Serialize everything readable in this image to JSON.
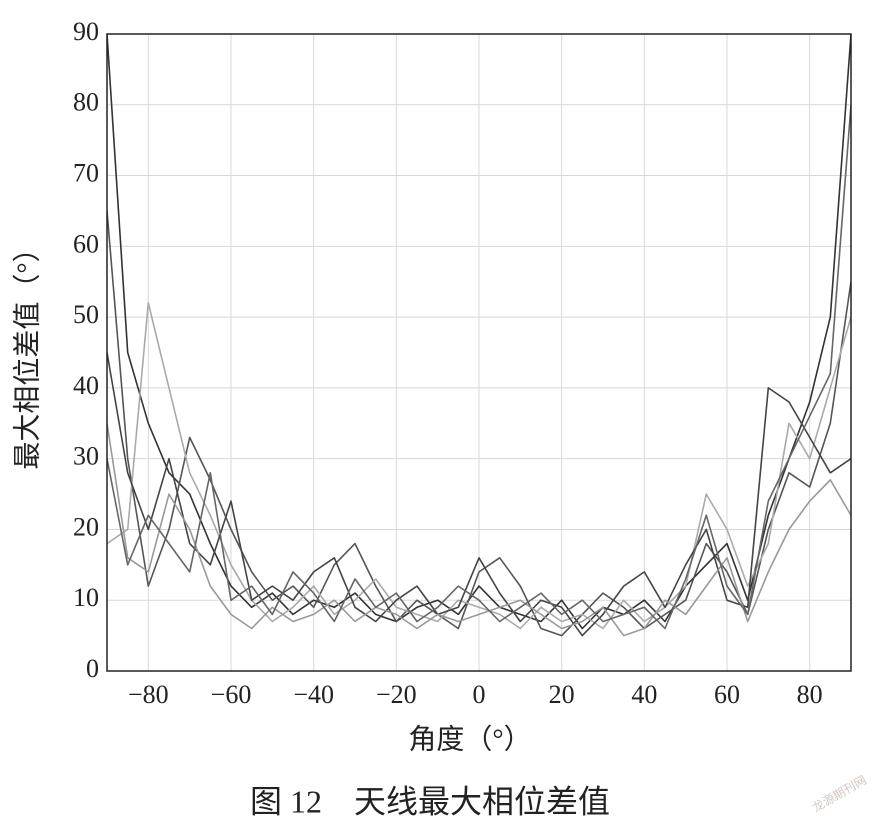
{
  "chart_data": {
    "type": "line",
    "xlabel": "角度（°）",
    "ylabel": "最大相位差值（°）",
    "caption": "图 12　天线最大相位差值",
    "watermark": "龙源期刊网",
    "grid": true,
    "xlim": [
      -90,
      90
    ],
    "ylim": [
      0,
      90
    ],
    "xticks": [
      {
        "value": -80,
        "label": "−80"
      },
      {
        "value": -60,
        "label": "−60"
      },
      {
        "value": -40,
        "label": "−40"
      },
      {
        "value": -20,
        "label": "−20"
      },
      0,
      20,
      40,
      60,
      80
    ],
    "yticks": [
      0,
      10,
      20,
      30,
      40,
      50,
      60,
      70,
      80,
      90
    ],
    "x": [
      -90,
      -85,
      -80,
      -75,
      -70,
      -65,
      -60,
      -55,
      -50,
      -45,
      -40,
      -35,
      -30,
      -25,
      -20,
      -15,
      -10,
      -5,
      0,
      5,
      10,
      15,
      20,
      25,
      30,
      35,
      40,
      45,
      50,
      55,
      60,
      65,
      70,
      75,
      80,
      85,
      90
    ],
    "series": [
      {
        "color": "#333333",
        "values": [
          90,
          45,
          35,
          28,
          25,
          18,
          12,
          9,
          11,
          8,
          10,
          9,
          11,
          8,
          7,
          9,
          10,
          8,
          12,
          9,
          8,
          7,
          10,
          6,
          9,
          8,
          10,
          7,
          12,
          15,
          18,
          10,
          22,
          30,
          38,
          50,
          90
        ]
      },
      {
        "color": "#555555",
        "values": [
          65,
          30,
          12,
          20,
          33,
          27,
          20,
          14,
          10,
          12,
          9,
          15,
          18,
          12,
          7,
          10,
          8,
          6,
          14,
          16,
          12,
          6,
          5,
          8,
          11,
          9,
          6,
          8,
          10,
          18,
          14,
          8,
          20,
          28,
          26,
          35,
          55
        ]
      },
      {
        "color": "#aaaaaa",
        "values": [
          18,
          20,
          52,
          40,
          28,
          22,
          15,
          10,
          7,
          9,
          12,
          8,
          10,
          13,
          9,
          8,
          7,
          10,
          9,
          8,
          6,
          9,
          7,
          8,
          6,
          10,
          7,
          9,
          12,
          25,
          20,
          12,
          18,
          35,
          30,
          40,
          50
        ]
      },
      {
        "color": "#444444",
        "values": [
          45,
          28,
          20,
          30,
          18,
          15,
          24,
          10,
          12,
          10,
          14,
          16,
          9,
          7,
          10,
          12,
          8,
          9,
          16,
          11,
          7,
          10,
          9,
          5,
          8,
          12,
          14,
          9,
          15,
          20,
          10,
          9,
          40,
          38,
          33,
          28,
          30
        ]
      },
      {
        "color": "#999999",
        "values": [
          35,
          16,
          14,
          25,
          20,
          12,
          8,
          6,
          9,
          7,
          8,
          10,
          7,
          9,
          8,
          6,
          8,
          7,
          8,
          9,
          10,
          8,
          6,
          7,
          9,
          5,
          6,
          10,
          8,
          12,
          16,
          7,
          14,
          20,
          24,
          27,
          22
        ]
      },
      {
        "color": "#666666",
        "values": [
          30,
          15,
          22,
          18,
          14,
          28,
          10,
          12,
          8,
          14,
          11,
          7,
          13,
          9,
          11,
          7,
          9,
          12,
          10,
          7,
          9,
          11,
          8,
          10,
          7,
          8,
          9,
          6,
          13,
          22,
          12,
          8,
          24,
          30,
          36,
          42,
          80
        ]
      }
    ]
  }
}
